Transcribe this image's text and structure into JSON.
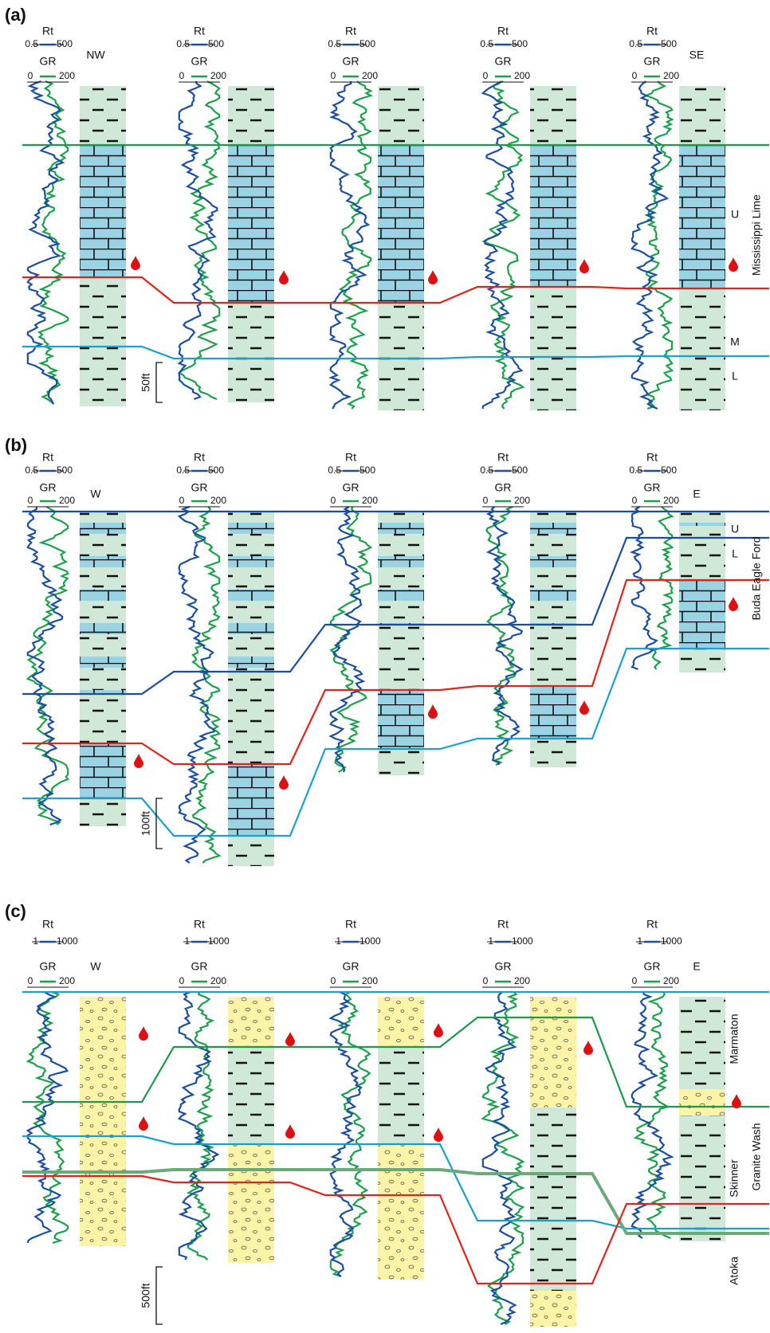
{
  "panels": [
    {
      "label": "(a)",
      "directions": [
        "NW",
        "SE"
      ],
      "formation": "Mississippi Lime",
      "units": [
        "U",
        "M",
        "L"
      ],
      "scale": "50ft",
      "wells": [
        {
          "rt": {
            "name": "Rt",
            "min": "0.5",
            "max": "500"
          },
          "gr": {
            "name": "GR",
            "min": "0",
            "max": "200"
          }
        },
        {
          "rt": {
            "name": "Rt",
            "min": "0.5",
            "max": "500"
          },
          "gr": {
            "name": "GR",
            "min": "0",
            "max": "200"
          }
        },
        {
          "rt": {
            "name": "Rt",
            "min": "0.5",
            "max": "500"
          },
          "gr": {
            "name": "GR",
            "min": "0",
            "max": "200"
          }
        },
        {
          "rt": {
            "name": "Rt",
            "min": "0.5",
            "max": "500"
          },
          "gr": {
            "name": "GR",
            "min": "0",
            "max": "200"
          }
        },
        {
          "rt": {
            "name": "Rt",
            "min": "0.5",
            "max": "500"
          },
          "gr": {
            "name": "GR",
            "min": "0",
            "max": "200"
          }
        }
      ]
    },
    {
      "label": "(b)",
      "directions": [
        "W",
        "E"
      ],
      "formation": "Buda Eagle Ford",
      "units": [
        "U",
        "L"
      ],
      "scale": "100ft",
      "wells": [
        {
          "rt": {
            "name": "Rt",
            "min": "0.5",
            "max": "500"
          },
          "gr": {
            "name": "GR",
            "min": "0",
            "max": "200"
          }
        },
        {
          "rt": {
            "name": "Rt",
            "min": "0.5",
            "max": "500"
          },
          "gr": {
            "name": "GR",
            "min": "0",
            "max": "200"
          }
        },
        {
          "rt": {
            "name": "Rt",
            "min": "0.5",
            "max": "500"
          },
          "gr": {
            "name": "GR",
            "min": "0",
            "max": "200"
          }
        },
        {
          "rt": {
            "name": "Rt",
            "min": "0.5",
            "max": "500"
          },
          "gr": {
            "name": "GR",
            "min": "0",
            "max": "200"
          }
        },
        {
          "rt": {
            "name": "Rt",
            "min": "0.5",
            "max": "500"
          },
          "gr": {
            "name": "GR",
            "min": "0",
            "max": "200"
          }
        }
      ]
    },
    {
      "label": "(c)",
      "directions": [
        "W",
        "E"
      ],
      "formation": "Granite Wash",
      "units": [
        "Marmaton",
        "Skinner",
        "Atoka"
      ],
      "scale": "500ft",
      "wells": [
        {
          "rt": {
            "name": "Rt",
            "min": "1",
            "max": "1000"
          },
          "gr": {
            "name": "GR",
            "min": "0",
            "max": "200"
          }
        },
        {
          "rt": {
            "name": "Rt",
            "min": "1",
            "max": "1000"
          },
          "gr": {
            "name": "GR",
            "min": "0",
            "max": "200"
          }
        },
        {
          "rt": {
            "name": "Rt",
            "min": "1",
            "max": "1000"
          },
          "gr": {
            "name": "GR",
            "min": "0",
            "max": "200"
          }
        },
        {
          "rt": {
            "name": "Rt",
            "min": "1",
            "max": "1000"
          },
          "gr": {
            "name": "GR",
            "min": "0",
            "max": "200"
          }
        },
        {
          "rt": {
            "name": "Rt",
            "min": "1",
            "max": "1000"
          },
          "gr": {
            "name": "GR",
            "min": "0",
            "max": "200"
          }
        }
      ]
    }
  ]
}
